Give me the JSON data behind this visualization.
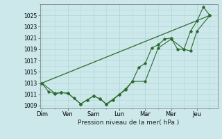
{
  "xlabel": "Pression niveau de la mer( hPa )",
  "background_color": "#cce8ea",
  "grid_color": "#b0d8da",
  "line_color": "#2d6a2d",
  "ylim": [
    1008.5,
    1027.0
  ],
  "yticks": [
    1009,
    1011,
    1013,
    1015,
    1017,
    1019,
    1021,
    1023,
    1025
  ],
  "days": [
    "Dim",
    "Ven",
    "Sam",
    "Lun",
    "Mar",
    "Mer",
    "Jeu"
  ],
  "day_positions": [
    0,
    2,
    4,
    6,
    8,
    10,
    12
  ],
  "xlim": [
    -0.15,
    13.6
  ],
  "line1_x": [
    0,
    0.5,
    1,
    1.5,
    2,
    2.5,
    3,
    3.5,
    4,
    4.5,
    5,
    5.5,
    6,
    6.5,
    7,
    7.5,
    8,
    8.5,
    9,
    9.5,
    10,
    10.5,
    11,
    11.5,
    12,
    12.5,
    13
  ],
  "line1_y": [
    1013.0,
    1011.5,
    1011.1,
    1011.3,
    1011.2,
    1010.3,
    1009.3,
    1010.0,
    1010.7,
    1010.2,
    1009.2,
    1010.0,
    1011.0,
    1011.8,
    1013.3,
    1015.8,
    1016.5,
    1019.2,
    1019.8,
    1020.8,
    1021.0,
    1019.0,
    1019.0,
    1022.2,
    1024.0,
    1026.5,
    1025.0
  ],
  "line2_x": [
    0,
    1,
    1.5,
    2,
    3,
    3.5,
    4,
    4.5,
    5,
    6,
    6.5,
    7,
    8,
    9,
    10,
    11,
    11.5,
    12,
    13
  ],
  "line2_y": [
    1013.0,
    1011.2,
    1011.3,
    1011.2,
    1009.3,
    1010.0,
    1010.7,
    1010.2,
    1009.3,
    1011.0,
    1012.0,
    1013.3,
    1013.3,
    1019.2,
    1020.8,
    1019.0,
    1018.7,
    1022.2,
    1025.0
  ],
  "line3_x": [
    0,
    13
  ],
  "line3_y": [
    1013.0,
    1025.0
  ]
}
